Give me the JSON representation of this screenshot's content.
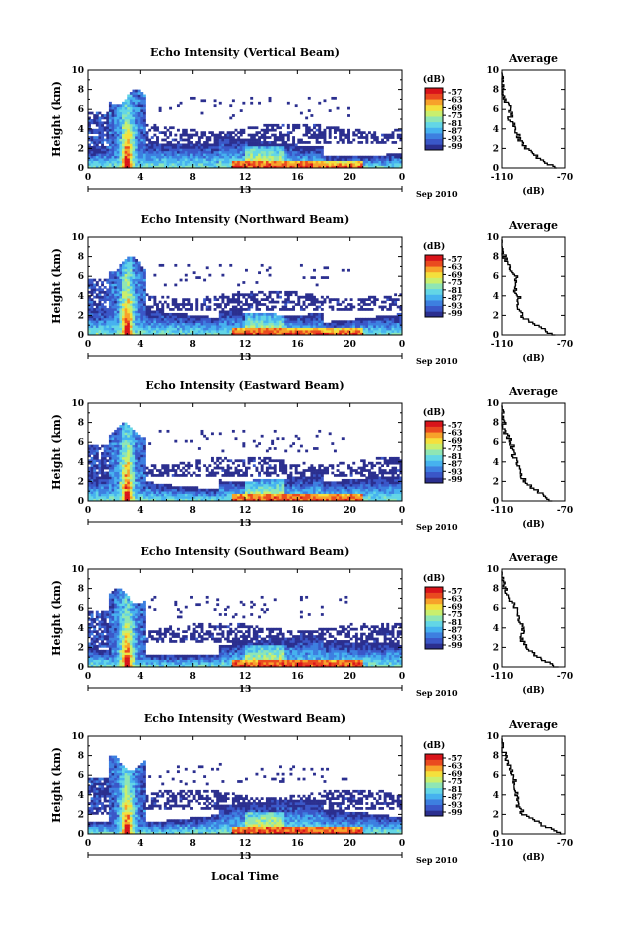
{
  "colors": {
    "scale": [
      "#2b2f8f",
      "#3a57c8",
      "#3d7fe0",
      "#46b2ef",
      "#63d6e6",
      "#8fe6b4",
      "#c9ef6e",
      "#f4e03c",
      "#f7a22a",
      "#ea4a1f",
      "#d9141a"
    ],
    "background": "#ffffff",
    "profile_line": "#000000"
  },
  "shared": {
    "xlabel": "Local Time",
    "date_label": "Sep 2010",
    "day_label": "13",
    "colorbar_unit": "(dB)",
    "colorbar_ticks": [
      "-57",
      "-63",
      "-69",
      "-75",
      "-81",
      "-87",
      "-93",
      "-99"
    ],
    "avg_title": "Average",
    "avg_xlabel": "(dB)",
    "avg_xticks": [
      "-110",
      "-70"
    ],
    "avg_yticks": [
      "0",
      "2",
      "4",
      "6",
      "8",
      "10"
    ],
    "yticks": [
      "0",
      "2",
      "4",
      "6",
      "8",
      "10"
    ],
    "xticks": [
      "0",
      "4",
      "8",
      "12",
      "16",
      "20",
      "0"
    ]
  },
  "chart_data": [
    {
      "type": "heatmap",
      "title": "Echo Intensity (Vertical Beam)",
      "xlabel": "",
      "ylabel": "Height (km)",
      "xlim": [
        0,
        24
      ],
      "ylim": [
        0,
        10
      ],
      "zlim": [
        -99,
        -57
      ],
      "zunit": "dB",
      "average_profile": {
        "xlim": [
          -110,
          -70
        ],
        "height": [
          0,
          1,
          2,
          3,
          4,
          5,
          6,
          7,
          8,
          9
        ],
        "value": [
          -75,
          -86,
          -94,
          -99,
          -101,
          -105,
          -104,
          -108,
          -110,
          -110
        ]
      }
    },
    {
      "type": "heatmap",
      "title": "Echo Intensity (Northward Beam)",
      "xlabel": "",
      "ylabel": "Height (km)",
      "xlim": [
        0,
        24
      ],
      "ylim": [
        0,
        10
      ],
      "zlim": [
        -99,
        -57
      ],
      "zunit": "dB",
      "average_profile": {
        "xlim": [
          -110,
          -70
        ],
        "height": [
          0,
          1,
          2,
          3,
          4,
          5,
          6,
          7,
          8,
          9
        ],
        "value": [
          -76,
          -88,
          -97,
          -100,
          -99,
          -103,
          -101,
          -106,
          -108,
          -110
        ]
      }
    },
    {
      "type": "heatmap",
      "title": "Echo Intensity (Eastward Beam)",
      "xlabel": "",
      "ylabel": "Height (km)",
      "xlim": [
        0,
        24
      ],
      "ylim": [
        0,
        10
      ],
      "zlim": [
        -99,
        -57
      ],
      "zunit": "dB",
      "average_profile": {
        "xlim": [
          -110,
          -70
        ],
        "height": [
          0,
          1,
          2,
          3,
          4,
          5,
          6,
          7,
          8,
          9
        ],
        "value": [
          -78,
          -87,
          -95,
          -99,
          -101,
          -103,
          -104,
          -108,
          -109,
          -110
        ]
      }
    },
    {
      "type": "heatmap",
      "title": "Echo Intensity (Southward Beam)",
      "xlabel": "",
      "ylabel": "Height (km)",
      "xlim": [
        0,
        24
      ],
      "ylim": [
        0,
        10
      ],
      "zlim": [
        -99,
        -57
      ],
      "zunit": "dB",
      "average_profile": {
        "xlim": [
          -110,
          -70
        ],
        "height": [
          0,
          1,
          2,
          3,
          4,
          5,
          6,
          7,
          8,
          9
        ],
        "value": [
          -74,
          -86,
          -95,
          -98,
          -96,
          -99,
          -101,
          -105,
          -108,
          -110
        ]
      }
    },
    {
      "type": "heatmap",
      "title": "Echo Intensity (Westward Beam)",
      "xlabel": "Local Time",
      "ylabel": "Height (km)",
      "xlim": [
        0,
        24
      ],
      "ylim": [
        0,
        10
      ],
      "zlim": [
        -99,
        -57
      ],
      "zunit": "dB",
      "average_profile": {
        "xlim": [
          -110,
          -70
        ],
        "height": [
          0,
          1,
          2,
          3,
          4,
          5,
          6,
          7,
          8,
          9
        ],
        "value": [
          -72,
          -84,
          -96,
          -100,
          -101,
          -102,
          -102,
          -105,
          -108,
          -110
        ]
      }
    }
  ]
}
